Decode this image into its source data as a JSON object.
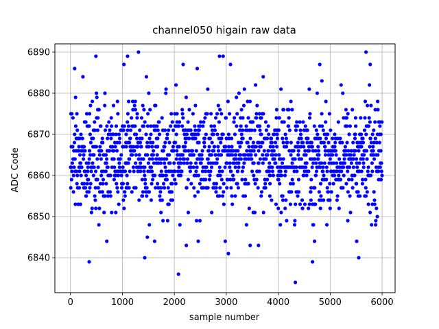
{
  "chart_data": {
    "type": "scatter",
    "title": "channel050 higain raw data",
    "xlabel": "sample number",
    "ylabel": "ADC Code",
    "xlim": [
      -300,
      6250
    ],
    "ylim": [
      6831.5,
      6892
    ],
    "xticks": [
      0,
      1000,
      2000,
      3000,
      4000,
      5000,
      6000
    ],
    "yticks": [
      6840,
      6850,
      6860,
      6870,
      6880,
      6890
    ],
    "grid": true,
    "marker_color": "#0000ff",
    "marker": "circle",
    "series": [
      {
        "name": "",
        "generator": {
          "n_samples": 6000,
          "mean": 6864.5,
          "stddev": 6.5,
          "distribution": "integer-quantized gaussian"
        },
        "points": [
          {
            "x": 80,
            "y": 6886
          },
          {
            "x": 490,
            "y": 6889
          },
          {
            "x": 1030,
            "y": 6887
          },
          {
            "x": 1100,
            "y": 6889
          },
          {
            "x": 1310,
            "y": 6890
          },
          {
            "x": 2170,
            "y": 6887
          },
          {
            "x": 2440,
            "y": 6886
          },
          {
            "x": 2870,
            "y": 6889
          },
          {
            "x": 2940,
            "y": 6889
          },
          {
            "x": 3080,
            "y": 6887
          },
          {
            "x": 4800,
            "y": 6887
          },
          {
            "x": 5690,
            "y": 6890
          },
          {
            "x": 5770,
            "y": 6887
          },
          {
            "x": 360,
            "y": 6839
          },
          {
            "x": 700,
            "y": 6844
          },
          {
            "x": 1430,
            "y": 6840
          },
          {
            "x": 1480,
            "y": 6845
          },
          {
            "x": 1620,
            "y": 6844
          },
          {
            "x": 2080,
            "y": 6836
          },
          {
            "x": 2230,
            "y": 6843
          },
          {
            "x": 2460,
            "y": 6844
          },
          {
            "x": 2980,
            "y": 6844
          },
          {
            "x": 3040,
            "y": 6841
          },
          {
            "x": 3460,
            "y": 6843
          },
          {
            "x": 3620,
            "y": 6843
          },
          {
            "x": 4330,
            "y": 6834
          },
          {
            "x": 4660,
            "y": 6839
          },
          {
            "x": 4700,
            "y": 6844
          },
          {
            "x": 5510,
            "y": 6844
          },
          {
            "x": 5550,
            "y": 6840
          }
        ]
      }
    ]
  }
}
